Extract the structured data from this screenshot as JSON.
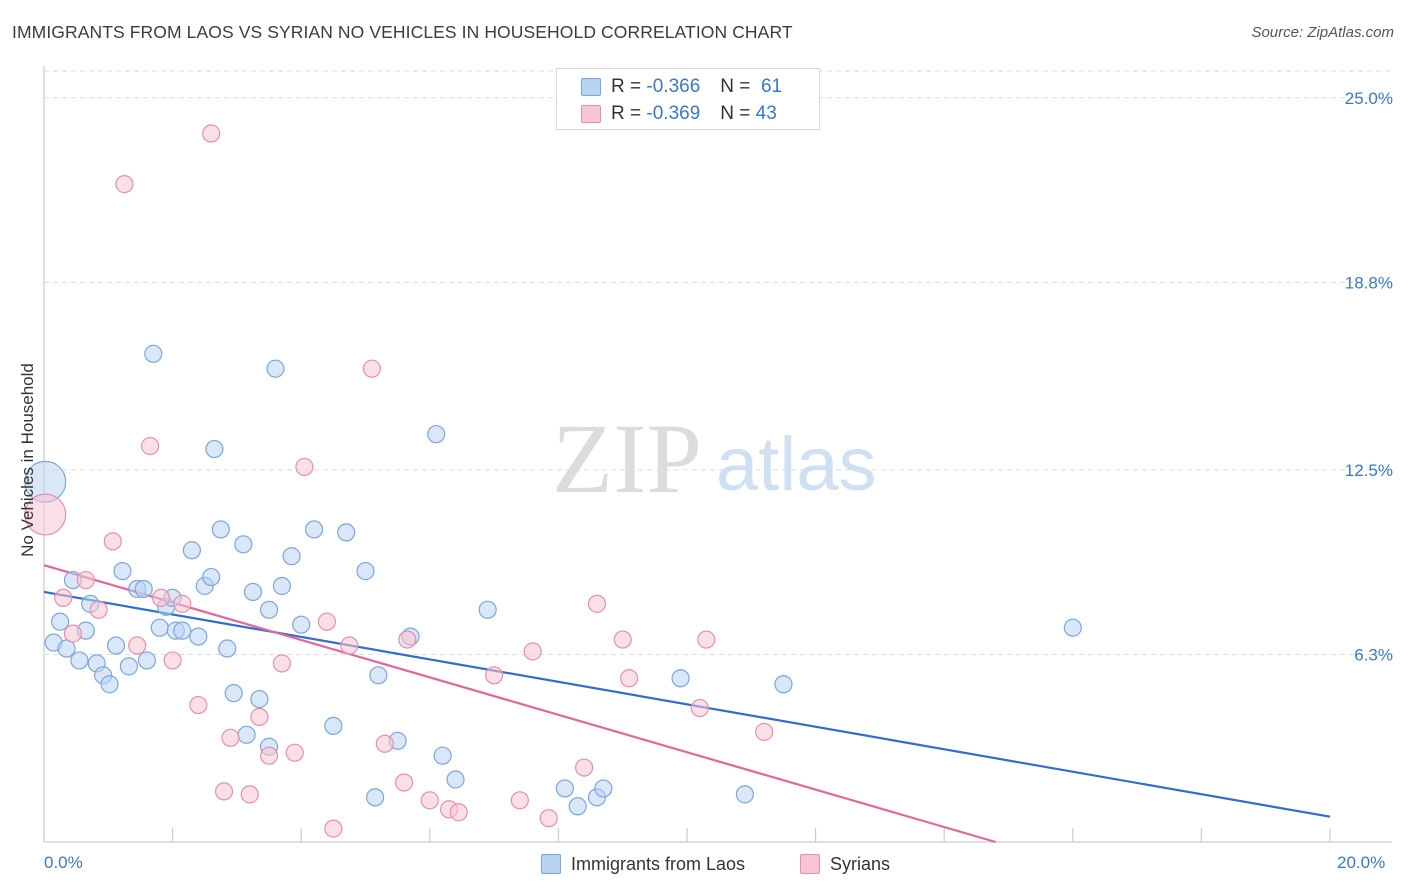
{
  "header": {
    "title": "IMMIGRANTS FROM LAOS VS SYRIAN NO VEHICLES IN HOUSEHOLD CORRELATION CHART",
    "source": "Source: ZipAtlas.com"
  },
  "watermark": {
    "zip": "ZIP",
    "atlas": "atlas"
  },
  "colors": {
    "blue_fill": "#b9d3f2",
    "blue_stroke": "#7aa7dc",
    "blue_line": "#2f6fcb",
    "pink_fill": "#f7c5d4",
    "pink_stroke": "#e88fab",
    "pink_line": "#e0679a",
    "tick_label": "#3b78c4",
    "grid": "#dddddd"
  },
  "legend": {
    "rows": [
      {
        "r_label": "R =",
        "r_value": "-0.366",
        "n_label": "N =",
        "n_value": "61"
      },
      {
        "r_label": "R =",
        "r_value": "-0.369",
        "n_label": "N =",
        "n_value": "43"
      }
    ]
  },
  "bottom_legend": {
    "laos": "Immigrants from Laos",
    "syrians": "Syrians"
  },
  "chart_data": {
    "type": "scatter",
    "title": "IMMIGRANTS FROM LAOS VS SYRIAN NO VEHICLES IN HOUSEHOLD CORRELATION CHART",
    "xlabel": "",
    "ylabel": "No Vehicles in Household",
    "xlim": [
      0,
      20
    ],
    "ylim": [
      0,
      25.9
    ],
    "x_tick_labels": [
      "0.0%",
      "20.0%"
    ],
    "y_ticks": [
      6.3,
      12.5,
      18.8,
      25.0
    ],
    "y_tick_labels": [
      "6.3%",
      "12.5%",
      "18.8%",
      "25.0%"
    ],
    "grid": true,
    "legend_placement": "top-center",
    "series": [
      {
        "name": "Immigrants from Laos",
        "r": -0.366,
        "n": 61,
        "trend": {
          "x": [
            0,
            20
          ],
          "y": [
            8.4,
            0.85
          ]
        },
        "points": [
          [
            0.02,
            12.1,
            2.4
          ],
          [
            0.15,
            6.7,
            1
          ],
          [
            0.25,
            7.4,
            1
          ],
          [
            0.35,
            6.5,
            1
          ],
          [
            0.45,
            8.8,
            1
          ],
          [
            0.55,
            6.1,
            1
          ],
          [
            0.65,
            7.1,
            1
          ],
          [
            0.72,
            8.0,
            1
          ],
          [
            0.82,
            6.0,
            1
          ],
          [
            0.92,
            5.6,
            1
          ],
          [
            1.02,
            5.3,
            1
          ],
          [
            1.12,
            6.6,
            1
          ],
          [
            1.22,
            9.1,
            1
          ],
          [
            1.32,
            5.9,
            1
          ],
          [
            1.45,
            8.5,
            1
          ],
          [
            1.55,
            8.5,
            1
          ],
          [
            1.6,
            6.1,
            1
          ],
          [
            1.7,
            16.4,
            1
          ],
          [
            1.8,
            7.2,
            1
          ],
          [
            1.9,
            7.9,
            1
          ],
          [
            2.0,
            8.2,
            1
          ],
          [
            2.05,
            7.1,
            1
          ],
          [
            2.15,
            7.1,
            1
          ],
          [
            2.3,
            9.8,
            1
          ],
          [
            2.4,
            6.9,
            1
          ],
          [
            2.5,
            8.6,
            1
          ],
          [
            2.6,
            8.9,
            1
          ],
          [
            2.65,
            13.2,
            1
          ],
          [
            2.75,
            10.5,
            1
          ],
          [
            2.85,
            6.5,
            1
          ],
          [
            2.95,
            5.0,
            1
          ],
          [
            3.1,
            10.0,
            1
          ],
          [
            3.15,
            3.6,
            1
          ],
          [
            3.25,
            8.4,
            1
          ],
          [
            3.35,
            4.8,
            1
          ],
          [
            3.5,
            7.8,
            1
          ],
          [
            3.5,
            3.2,
            1
          ],
          [
            3.6,
            15.9,
            1
          ],
          [
            3.7,
            8.6,
            1
          ],
          [
            3.85,
            9.6,
            1
          ],
          [
            4.0,
            7.3,
            1
          ],
          [
            4.2,
            10.5,
            1
          ],
          [
            4.5,
            3.9,
            1
          ],
          [
            4.7,
            10.4,
            1
          ],
          [
            5.0,
            9.1,
            1
          ],
          [
            5.15,
            1.5,
            1
          ],
          [
            5.2,
            5.6,
            1
          ],
          [
            5.5,
            3.4,
            1
          ],
          [
            5.7,
            6.9,
            1
          ],
          [
            6.1,
            13.7,
            1
          ],
          [
            6.2,
            2.9,
            1
          ],
          [
            6.4,
            2.1,
            1
          ],
          [
            6.9,
            7.8,
            1
          ],
          [
            8.1,
            1.8,
            1
          ],
          [
            8.3,
            1.2,
            1
          ],
          [
            8.6,
            1.5,
            1
          ],
          [
            8.7,
            1.8,
            1
          ],
          [
            9.9,
            5.5,
            1
          ],
          [
            10.9,
            1.6,
            1
          ],
          [
            11.5,
            5.3,
            1
          ],
          [
            16.0,
            7.2,
            1
          ]
        ]
      },
      {
        "name": "Syrians",
        "r": -0.369,
        "n": 43,
        "trend": {
          "x": [
            0,
            14.8
          ],
          "y": [
            9.3,
            0
          ]
        },
        "points": [
          [
            0.02,
            11.0,
            2.4
          ],
          [
            0.3,
            8.2,
            1
          ],
          [
            0.45,
            7.0,
            1
          ],
          [
            0.65,
            8.8,
            1
          ],
          [
            0.85,
            7.8,
            1
          ],
          [
            1.07,
            10.1,
            1
          ],
          [
            1.25,
            22.1,
            1
          ],
          [
            1.45,
            6.6,
            1
          ],
          [
            1.65,
            13.3,
            1
          ],
          [
            1.82,
            8.2,
            1
          ],
          [
            2.0,
            6.1,
            1
          ],
          [
            2.15,
            8.0,
            1
          ],
          [
            2.4,
            4.6,
            1
          ],
          [
            2.6,
            23.8,
            1
          ],
          [
            2.8,
            1.7,
            1
          ],
          [
            2.9,
            3.5,
            1
          ],
          [
            3.2,
            1.6,
            1
          ],
          [
            3.35,
            4.2,
            1
          ],
          [
            3.5,
            2.9,
            1
          ],
          [
            3.7,
            6.0,
            1
          ],
          [
            3.9,
            3.0,
            1
          ],
          [
            4.05,
            12.6,
            1
          ],
          [
            4.4,
            7.4,
            1
          ],
          [
            4.5,
            0.45,
            1
          ],
          [
            4.75,
            6.6,
            1
          ],
          [
            5.1,
            15.9,
            1
          ],
          [
            5.3,
            3.3,
            1
          ],
          [
            5.65,
            6.8,
            1
          ],
          [
            5.6,
            2.0,
            1
          ],
          [
            6.0,
            1.4,
            1
          ],
          [
            6.3,
            1.1,
            1
          ],
          [
            6.45,
            1.0,
            1
          ],
          [
            7.0,
            5.6,
            1
          ],
          [
            7.4,
            1.4,
            1
          ],
          [
            7.6,
            6.4,
            1
          ],
          [
            7.85,
            0.8,
            1
          ],
          [
            8.4,
            2.5,
            1
          ],
          [
            8.6,
            8.0,
            1
          ],
          [
            9.0,
            6.8,
            1
          ],
          [
            9.1,
            5.5,
            1
          ],
          [
            10.2,
            4.5,
            1
          ],
          [
            10.3,
            6.8,
            1
          ],
          [
            11.2,
            3.7,
            1
          ]
        ]
      }
    ]
  }
}
